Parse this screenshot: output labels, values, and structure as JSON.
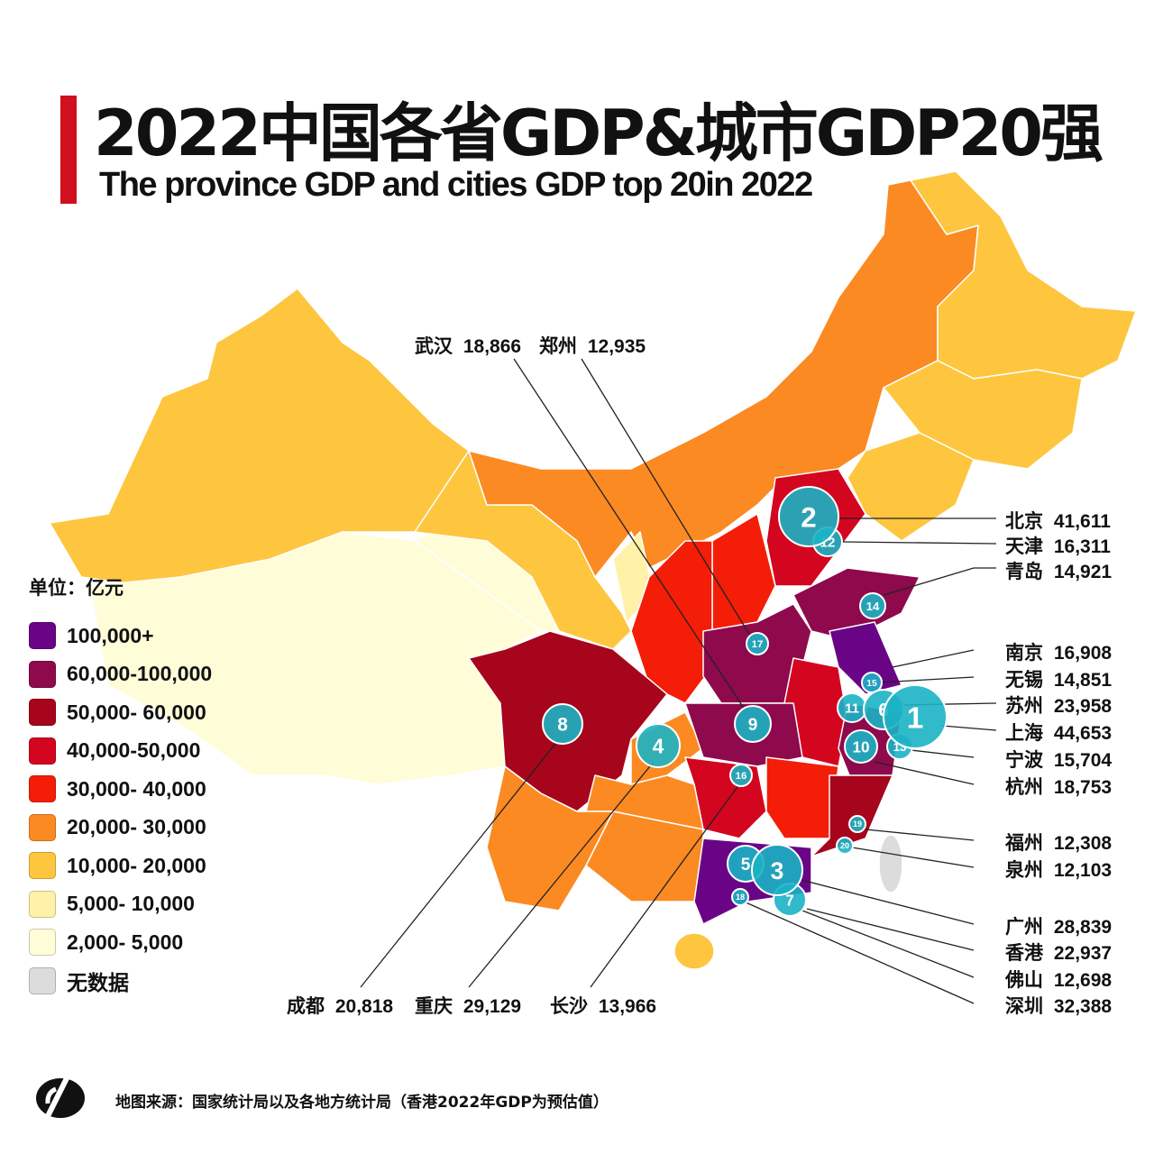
{
  "header": {
    "title": "2022中国各省GDP&城市GDP20强",
    "subtitle": "The province GDP and cities GDP top 20in 2022"
  },
  "legend": {
    "unit": "单位：亿元",
    "items": [
      {
        "label": "100,000+",
        "color": "#6a0487"
      },
      {
        "label": "60,000-100,000",
        "color": "#8e0a4c"
      },
      {
        "label": "50,000- 60,000",
        "color": "#a6051c"
      },
      {
        "label": "40,000-50,000",
        "color": "#d3051f"
      },
      {
        "label": "30,000- 40,000",
        "color": "#f41d07"
      },
      {
        "label": "20,000- 30,000",
        "color": "#fb8a22"
      },
      {
        "label": "10,000- 20,000",
        "color": "#fdc63e"
      },
      {
        "label": "5,000- 10,000",
        "color": "#fff1a8"
      },
      {
        "label": "2,000- 5,000",
        "color": "#fffcd8"
      },
      {
        "label": "无数据",
        "color": "#dcdcdc"
      }
    ]
  },
  "cities": [
    {
      "rank": "1",
      "name": "上海",
      "gdp": "44,653"
    },
    {
      "rank": "2",
      "name": "北京",
      "gdp": "41,611"
    },
    {
      "rank": "3",
      "name": "深圳",
      "gdp": "32,388"
    },
    {
      "rank": "4",
      "name": "重庆",
      "gdp": "29,129"
    },
    {
      "rank": "5",
      "name": "广州",
      "gdp": "28,839"
    },
    {
      "rank": "6",
      "name": "苏州",
      "gdp": "23,958"
    },
    {
      "rank": "7",
      "name": "香港",
      "gdp": "22,937"
    },
    {
      "rank": "8",
      "name": "成都",
      "gdp": "20,818"
    },
    {
      "rank": "9",
      "name": "武汉",
      "gdp": "18,866"
    },
    {
      "rank": "10",
      "name": "杭州",
      "gdp": "18,753"
    },
    {
      "rank": "11",
      "name": "南京",
      "gdp": "16,908"
    },
    {
      "rank": "12",
      "name": "天津",
      "gdp": "16,311"
    },
    {
      "rank": "13",
      "name": "宁波",
      "gdp": "15,704"
    },
    {
      "rank": "14",
      "name": "青岛",
      "gdp": "14,921"
    },
    {
      "rank": "15",
      "name": "无锡",
      "gdp": "14,851"
    },
    {
      "rank": "16",
      "name": "长沙",
      "gdp": "13,966"
    },
    {
      "rank": "17",
      "name": "郑州",
      "gdp": "12,935"
    },
    {
      "rank": "18",
      "name": "佛山",
      "gdp": "12,698"
    },
    {
      "rank": "19",
      "name": "福州",
      "gdp": "12,308"
    },
    {
      "rank": "20",
      "name": "泉州",
      "gdp": "12,103"
    }
  ],
  "colors": {
    "bubble": "#1bb3c4",
    "accent": "#d0101e"
  },
  "footer": {
    "source": "地图来源：国家统计局以及各地方统计局（香港2022年GDP为预估值）"
  }
}
